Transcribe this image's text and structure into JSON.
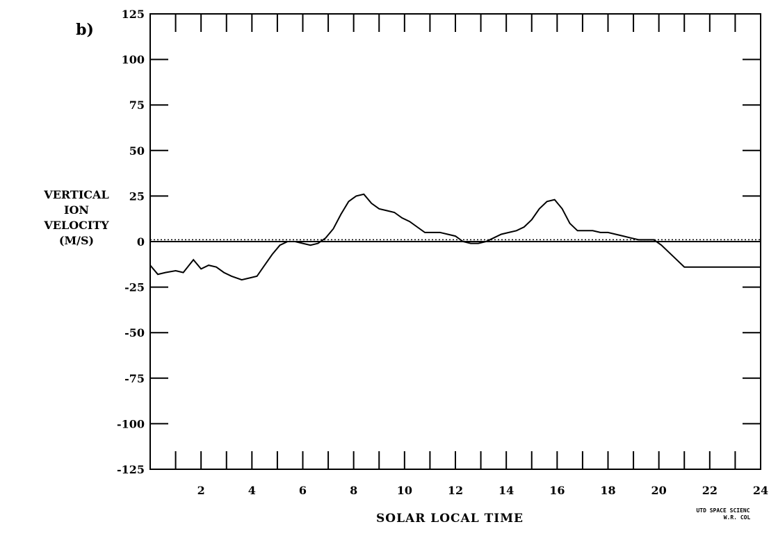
{
  "chart_data": {
    "type": "line",
    "panel_label": "b)",
    "xlabel": "SOLAR LOCAL TIME",
    "ylabel": [
      "VERTICAL",
      "ION",
      "VELOCITY",
      "(M/S)"
    ],
    "xlim": [
      0,
      24
    ],
    "ylim": [
      -125,
      125
    ],
    "x_ticks": [
      2,
      4,
      6,
      8,
      10,
      12,
      14,
      16,
      18,
      20,
      22,
      24
    ],
    "x_tick_labels": [
      "2",
      "4",
      "6",
      "8",
      "10",
      "12",
      "14",
      "16",
      "18",
      "20",
      "22",
      "24"
    ],
    "y_ticks": [
      125,
      100,
      75,
      50,
      25,
      0,
      -25,
      -50,
      -75,
      -100,
      -125
    ],
    "y_tick_labels": [
      "125",
      "100",
      "75",
      "50",
      "25",
      "0",
      "-25",
      "-50",
      "-75",
      "-100",
      "-125"
    ],
    "grid": false,
    "series": [
      {
        "style": "solid",
        "color": "#000000",
        "x": [
          0,
          0.3,
          0.6,
          1.0,
          1.3,
          1.7,
          2.0,
          2.3,
          2.6,
          2.9,
          3.2,
          3.6,
          3.9,
          4.2,
          4.5,
          4.8,
          5.1,
          5.4,
          5.7,
          6.0,
          6.3,
          6.6,
          6.9,
          7.2,
          7.5,
          7.8,
          8.1,
          8.4,
          8.7,
          9.0,
          9.3,
          9.6,
          9.9,
          10.2,
          10.5,
          10.8,
          11.1,
          11.4,
          11.7,
          12.0,
          12.3,
          12.6,
          12.9,
          13.2,
          13.5,
          13.8,
          14.1,
          14.4,
          14.7,
          15.0,
          15.3,
          15.6,
          15.9,
          16.2,
          16.5,
          16.8,
          17.1,
          17.4,
          17.7,
          18.0,
          18.3,
          18.6,
          18.9,
          19.2,
          19.5,
          19.8,
          20.1,
          20.4,
          20.7,
          21.0,
          21.3,
          21.6,
          21.9,
          22.2,
          22.5,
          22.8,
          23.1,
          23.4,
          23.7,
          24.0
        ],
        "values": [
          -13,
          -18,
          -17,
          -16,
          -17,
          -10,
          -15,
          -13,
          -14,
          -17,
          -19,
          -21,
          -20,
          -19,
          -13,
          -7,
          -2,
          0,
          0,
          -1,
          -2,
          -1,
          2,
          7,
          15,
          22,
          25,
          26,
          21,
          18,
          17,
          16,
          13,
          11,
          8,
          5,
          5,
          5,
          4,
          3,
          0,
          -1,
          -1,
          0,
          2,
          4,
          5,
          6,
          8,
          12,
          18,
          22,
          23,
          18,
          10,
          6,
          6,
          6,
          5,
          5,
          4,
          3,
          2,
          1,
          1,
          1,
          -2,
          -6,
          -10,
          -14,
          -14,
          -14,
          -14,
          -14,
          -14,
          -14,
          -14,
          -14,
          -14,
          -14
        ]
      },
      {
        "style": "solid",
        "color": "#000000",
        "x": [
          0,
          24
        ],
        "values": [
          0,
          0
        ]
      },
      {
        "style": "dotted",
        "color": "#000000",
        "x": [
          0,
          24
        ],
        "values": [
          1,
          1
        ]
      }
    ],
    "credit": [
      "UTD SPACE SCIENC",
      "W.R. COL"
    ]
  }
}
